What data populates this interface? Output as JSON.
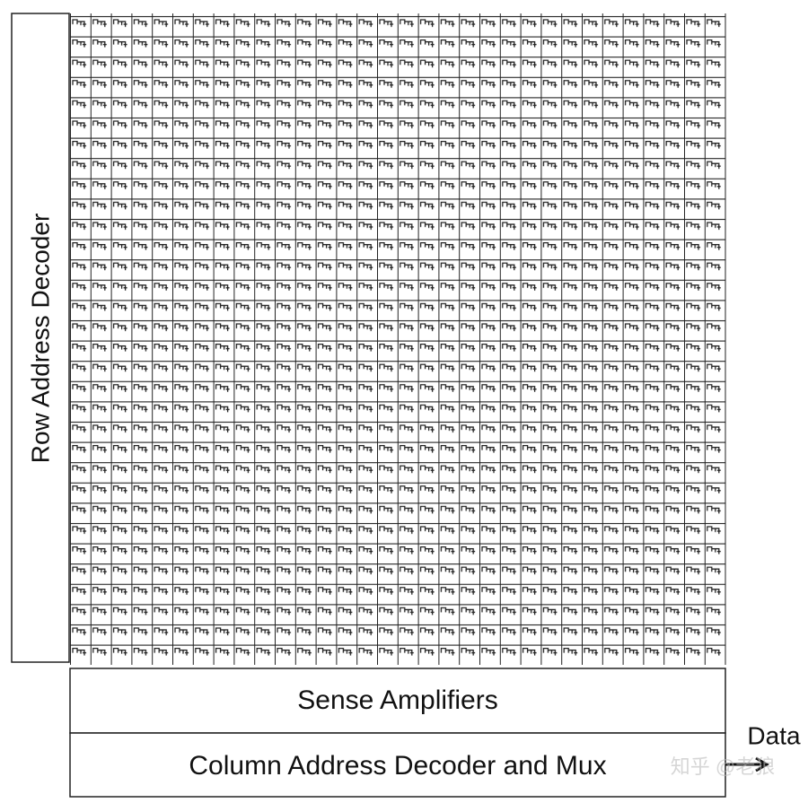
{
  "row_decoder": {
    "label": "Row Address Decoder"
  },
  "sense_amplifiers": {
    "label": "Sense Amplifiers"
  },
  "column_decoder": {
    "label": "Column Address Decoder and Mux"
  },
  "output": {
    "label": "Data"
  },
  "watermark": "知乎 @老狼"
}
